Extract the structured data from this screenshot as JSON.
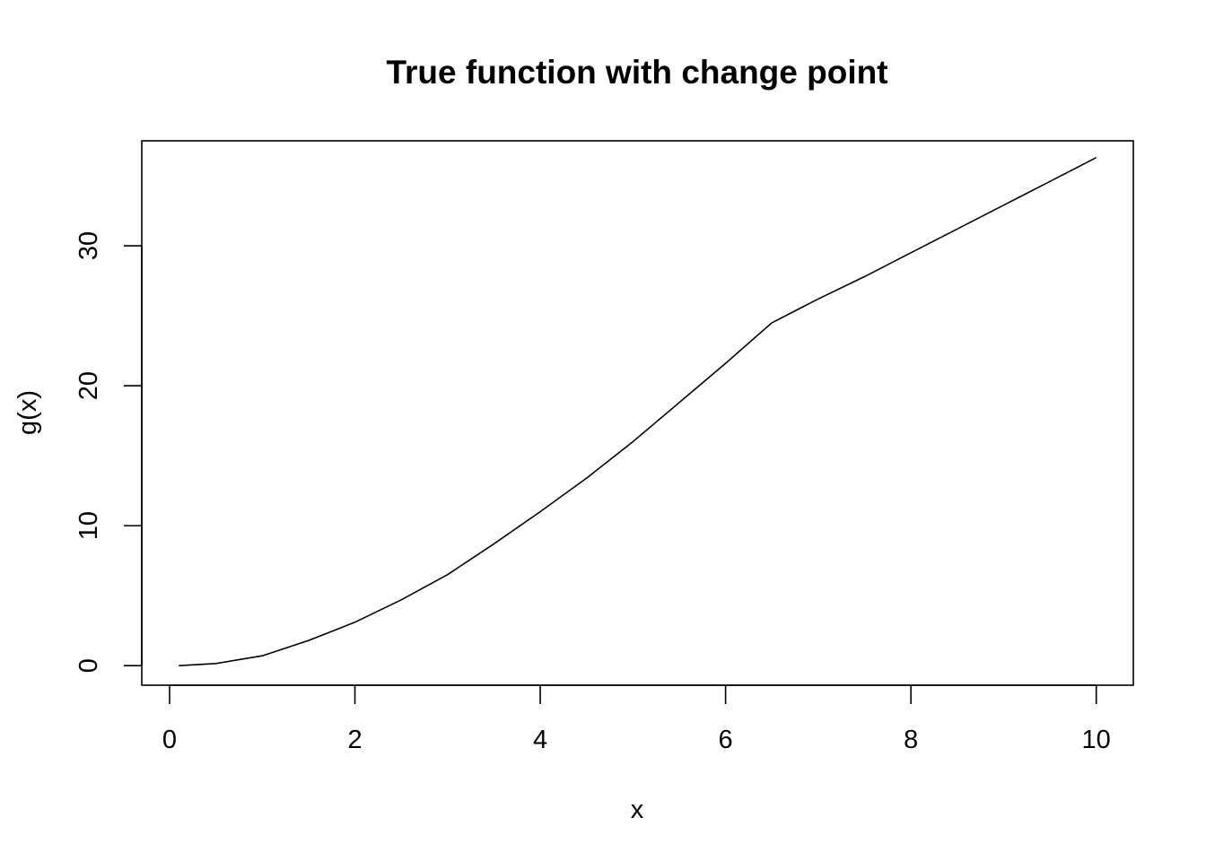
{
  "chart_data": {
    "type": "line",
    "title": "True function with change point",
    "xlabel": "x",
    "ylabel": "g(x)",
    "xlim": [
      -0.3,
      10.4
    ],
    "ylim": [
      -1.4,
      37.5
    ],
    "x_ticks": [
      0,
      2,
      4,
      6,
      8,
      10
    ],
    "x_tick_labels": [
      "0",
      "2",
      "4",
      "6",
      "8",
      "10"
    ],
    "y_ticks": [
      0,
      10,
      20,
      30
    ],
    "y_tick_labels": [
      "0",
      "10",
      "20",
      "30"
    ],
    "grid": false,
    "legend": "none",
    "line_color": "#000000",
    "series": [
      {
        "x": [
          0.1,
          0.5,
          1.0,
          1.5,
          2.0,
          2.5,
          3.0,
          3.5,
          4.0,
          4.5,
          5.0,
          5.5,
          6.0,
          6.5,
          7.0,
          7.5,
          8.0,
          8.5,
          9.0,
          9.5,
          10.0
        ],
        "y": [
          0.0,
          0.15,
          0.7,
          1.8,
          3.1,
          4.7,
          6.5,
          8.7,
          11.0,
          13.4,
          16.0,
          18.8,
          21.6,
          24.5,
          26.2,
          27.8,
          29.5,
          31.2,
          32.9,
          34.6,
          36.3
        ]
      }
    ]
  }
}
